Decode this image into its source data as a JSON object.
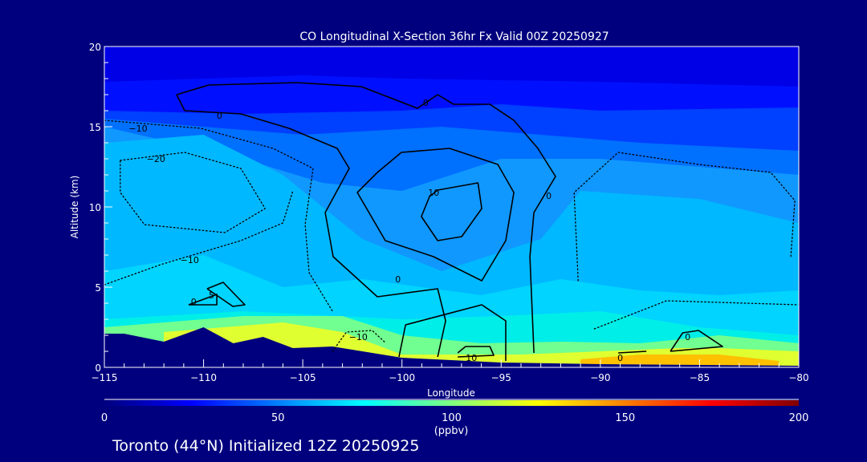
{
  "chart_data": {
    "type": "heatmap",
    "title": "CO Longitudinal X-Section 36hr  Fx Valid 00Z 20250927",
    "xlabel": "Longitude",
    "ylabel": "Altitude (km)",
    "xlim": [
      -115,
      -80
    ],
    "ylim": [
      0,
      20
    ],
    "xticks": [
      -115,
      -110,
      -105,
      -100,
      -95,
      -90,
      -85,
      -80
    ],
    "xtick_labels": [
      "−115",
      "−110",
      "−105",
      "−100",
      "−95",
      "−90",
      "−85",
      "−80"
    ],
    "yticks": [
      0,
      5,
      10,
      15,
      20
    ],
    "ytick_labels": [
      "0",
      "5",
      "10",
      "15",
      "20"
    ],
    "colorbar": {
      "min": 0,
      "max": 200,
      "ticks": [
        0,
        50,
        100,
        150,
        200
      ],
      "tick_labels": [
        "0",
        "50",
        "100",
        "150",
        "200"
      ],
      "units": "(ppbv)",
      "colors": [
        "#00007f",
        "#0000ff",
        "#0080ff",
        "#00ffff",
        "#80ff80",
        "#ffff00",
        "#ff8000",
        "#ff0000",
        "#800000"
      ]
    },
    "field_bands": [
      {
        "color": "#0000e6",
        "boundary": [
          [
            -115,
            20
          ],
          [
            -80,
            20
          ]
        ]
      },
      {
        "color": "#0010ff",
        "boundary": [
          [
            -115,
            17.8
          ],
          [
            -105,
            18.2
          ],
          [
            -100,
            18
          ],
          [
            -90,
            17.8
          ],
          [
            -80,
            17.5
          ]
        ]
      },
      {
        "color": "#0040ff",
        "boundary": [
          [
            -115,
            16
          ],
          [
            -108,
            15.8
          ],
          [
            -100,
            16
          ],
          [
            -95,
            16.4
          ],
          [
            -90,
            16
          ],
          [
            -80,
            16.2
          ]
        ]
      },
      {
        "color": "#0070ff",
        "boundary": [
          [
            -115,
            15.5
          ],
          [
            -105,
            14.5
          ],
          [
            -98,
            15
          ],
          [
            -93,
            14.5
          ],
          [
            -88,
            14
          ],
          [
            -80,
            13.5
          ]
        ]
      },
      {
        "color": "#1098ff",
        "boundary": [
          [
            -115,
            15
          ],
          [
            -108,
            13
          ],
          [
            -104,
            11.5
          ],
          [
            -100,
            11
          ],
          [
            -95,
            13
          ],
          [
            -90,
            13
          ],
          [
            -80,
            12
          ]
        ]
      },
      {
        "color": "#00b8ff",
        "boundary": [
          [
            -115,
            14
          ],
          [
            -110,
            14.5
          ],
          [
            -106,
            12
          ],
          [
            -102,
            8
          ],
          [
            -98,
            6
          ],
          [
            -93,
            8
          ],
          [
            -91,
            11
          ],
          [
            -85,
            10.5
          ],
          [
            -80,
            9
          ]
        ]
      },
      {
        "color": "#00d4ff",
        "boundary": [
          [
            -115,
            6
          ],
          [
            -110,
            7
          ],
          [
            -106,
            5
          ],
          [
            -102,
            5.5
          ],
          [
            -96,
            4.5
          ],
          [
            -92,
            5.5
          ],
          [
            -88,
            4.8
          ],
          [
            -84,
            4.5
          ],
          [
            -80,
            4.8
          ]
        ]
      },
      {
        "color": "#00eee8",
        "boundary": [
          [
            -115,
            3
          ],
          [
            -108,
            3.5
          ],
          [
            -100,
            3
          ],
          [
            -95,
            3.2
          ],
          [
            -90,
            3.5
          ],
          [
            -85,
            2.5
          ],
          [
            -80,
            2
          ]
        ]
      },
      {
        "color": "#70ff90",
        "boundary": [
          [
            -115,
            2.5
          ],
          [
            -108,
            3.2
          ],
          [
            -103,
            3.2
          ],
          [
            -100,
            2
          ],
          [
            -96,
            1.5
          ],
          [
            -92,
            1.6
          ],
          [
            -88,
            1.5
          ],
          [
            -84,
            2
          ],
          [
            -80,
            1.5
          ]
        ]
      },
      {
        "color": "#e0ff30",
        "boundary": [
          [
            -112,
            2.2
          ],
          [
            -106,
            2.8
          ],
          [
            -103,
            2.2
          ],
          [
            -100,
            0.8
          ],
          [
            -94,
            0.8
          ],
          [
            -90,
            1.0
          ],
          [
            -86,
            1.2
          ],
          [
            -84,
            1.2
          ],
          [
            -80,
            1.0
          ]
        ]
      },
      {
        "color": "#ffc000",
        "boundary": [
          [
            -91,
            0.5
          ],
          [
            -88,
            0.8
          ],
          [
            -84,
            0.8
          ],
          [
            -81,
            0.4
          ]
        ]
      }
    ],
    "terrain": [
      [
        -115,
        2.1
      ],
      [
        -114,
        2.1
      ],
      [
        -112,
        1.6
      ],
      [
        -110,
        2.5
      ],
      [
        -108.5,
        1.5
      ],
      [
        -107,
        1.9
      ],
      [
        -105.5,
        1.2
      ],
      [
        -103.5,
        1.3
      ],
      [
        -100,
        0.6
      ],
      [
        -95,
        0.3
      ],
      [
        -90,
        0.2
      ],
      [
        -80,
        0.1
      ]
    ],
    "contours": [
      {
        "level": 0,
        "dashed": false,
        "points": [
          [
            -111.36,
            17
          ],
          [
            -109.74,
            17.6
          ],
          [
            -105.29,
            17.75
          ],
          [
            -102.05,
            17.5
          ],
          [
            -99.22,
            16.15
          ],
          [
            -98.2,
            17
          ],
          [
            -97.4,
            16.4
          ],
          [
            -95.57,
            16.4
          ],
          [
            -94.36,
            15.4
          ],
          [
            -93.15,
            13.65
          ],
          [
            -92.26,
            11.9
          ],
          [
            -93.35,
            9.65
          ],
          [
            -93.55,
            6.9
          ],
          [
            -93.35,
            0.9
          ]
        ]
      },
      {
        "level": 0,
        "dashed": false,
        "points": [
          [
            -100.03,
            13.4
          ],
          [
            -97.6,
            13.65
          ],
          [
            -95.17,
            12.65
          ],
          [
            -94.36,
            10.9
          ],
          [
            -94.77,
            7.9
          ],
          [
            -95.98,
            5.4
          ],
          [
            -98.41,
            6.9
          ],
          [
            -100.84,
            7.9
          ],
          [
            -102.25,
            10.9
          ],
          [
            -101.24,
            12.15
          ],
          [
            -100.03,
            13.4
          ]
        ]
      },
      {
        "level": 0,
        "dashed": false,
        "points": [
          [
            -111.36,
            17
          ],
          [
            -110.95,
            16
          ],
          [
            -108.12,
            15.8
          ],
          [
            -105.69,
            14.9
          ],
          [
            -103.26,
            13.65
          ],
          [
            -102.66,
            12.4
          ],
          [
            -103.87,
            9.65
          ],
          [
            -103.47,
            6.9
          ],
          [
            -101.24,
            4.4
          ],
          [
            -98.2,
            4.9
          ],
          [
            -97.8,
            2.9
          ],
          [
            -98.2,
            0.65
          ]
        ]
      },
      {
        "level": 0,
        "dashed": false,
        "points": [
          [
            -100.15,
            0.65
          ],
          [
            -99.82,
            2.65
          ],
          [
            -95.98,
            3.9
          ],
          [
            -94.77,
            2.9
          ],
          [
            -94.77,
            0.4
          ]
        ]
      },
      {
        "level": 10,
        "dashed": false,
        "points": [
          [
            -98.2,
            11.05
          ],
          [
            -96.17,
            11.5
          ],
          [
            -95.98,
            9.9
          ],
          [
            -96.99,
            8.15
          ],
          [
            -98.2,
            7.9
          ],
          [
            -99.02,
            9.4
          ],
          [
            -98.61,
            10.65
          ],
          [
            -98.2,
            11.05
          ]
        ]
      },
      {
        "level": 10,
        "dashed": false,
        "points": [
          [
            -97.19,
            0.9
          ],
          [
            -96.79,
            1.3
          ],
          [
            -95.57,
            1.3
          ],
          [
            -95.37,
            0.75
          ],
          [
            -97.19,
            0.65
          ]
        ]
      },
      {
        "level": 0,
        "dashed": false,
        "points": [
          [
            -86.47,
            1
          ],
          [
            -85.85,
            2.15
          ],
          [
            -85.05,
            2.3
          ],
          [
            -83.84,
            1.3
          ],
          [
            -86.47,
            1
          ]
        ]
      },
      {
        "level": 0,
        "dashed": false,
        "points": [
          [
            -109.82,
            4.9
          ],
          [
            -109.01,
            5.3
          ],
          [
            -107.92,
            3.9
          ],
          [
            -108.52,
            3.8
          ],
          [
            -109.82,
            4.9
          ]
        ]
      },
      {
        "level": 0,
        "dashed": false,
        "points": [
          [
            -110.75,
            3.9
          ],
          [
            -109.33,
            4.55
          ],
          [
            -109.33,
            3.9
          ],
          [
            -110.75,
            3.9
          ]
        ]
      },
      {
        "level": 0,
        "dashed": false,
        "points": [
          [
            -89.1,
            0.9
          ],
          [
            -87.68,
            1
          ]
        ]
      },
      {
        "level": -10,
        "dashed": true,
        "points": [
          [
            -115,
            15.4
          ],
          [
            -110.14,
            14.9
          ],
          [
            -106.5,
            13.65
          ],
          [
            -104.48,
            12.4
          ],
          [
            -104.88,
            8.9
          ],
          [
            -104.68,
            5.9
          ],
          [
            -103.5,
            3.5
          ]
        ]
      },
      {
        "level": -10,
        "dashed": true,
        "points": [
          [
            -115,
            5.15
          ],
          [
            -112.17,
            6.4
          ],
          [
            -108.12,
            7.9
          ],
          [
            -106,
            9
          ],
          [
            -105.5,
            11
          ]
        ]
      },
      {
        "level": -20,
        "dashed": true,
        "points": [
          [
            -114.2,
            12.9
          ],
          [
            -110.95,
            13.4
          ],
          [
            -108.12,
            12.4
          ],
          [
            -106.9,
            9.9
          ],
          [
            -108.93,
            8.4
          ],
          [
            -112.98,
            8.9
          ],
          [
            -114.2,
            10.9
          ],
          [
            -114.2,
            12.9
          ]
        ]
      },
      {
        "level": -10,
        "dashed": true,
        "points": [
          [
            -103.5,
            1.0
          ],
          [
            -102.8,
            2.2
          ],
          [
            -101.5,
            2.3
          ],
          [
            -100.8,
            1.5
          ]
        ]
      },
      {
        "level": 0,
        "dashed": true,
        "points": [
          [
            -91.12,
            5.4
          ],
          [
            -91.32,
            10.9
          ],
          [
            -89.1,
            13.4
          ],
          [
            -85.05,
            12.65
          ],
          [
            -81.41,
            12.15
          ],
          [
            -80.2,
            10.4
          ],
          [
            -80.4,
            6.9
          ]
        ]
      },
      {
        "level": 0,
        "dashed": true,
        "points": [
          [
            -90.3,
            2.4
          ],
          [
            -86.67,
            4.15
          ],
          [
            -80,
            3.9
          ]
        ]
      }
    ],
    "contour_labels": [
      {
        "text": "0",
        "lon": -109.2,
        "alt": 15.7
      },
      {
        "text": "0",
        "lon": -98.8,
        "alt": 16.5
      },
      {
        "text": "−10",
        "lon": -113.3,
        "alt": 14.9
      },
      {
        "text": "−20",
        "lon": -112.4,
        "alt": 13.0
      },
      {
        "text": "10",
        "lon": -98.4,
        "alt": 10.9
      },
      {
        "text": "0",
        "lon": -92.6,
        "alt": 10.7
      },
      {
        "text": "−10",
        "lon": -110.7,
        "alt": 6.7
      },
      {
        "text": "0",
        "lon": -100.2,
        "alt": 5.5
      },
      {
        "text": "0",
        "lon": -110.5,
        "alt": 4.1
      },
      {
        "text": "5",
        "lon": -109.6,
        "alt": 4.5
      },
      {
        "text": "−10",
        "lon": -102.2,
        "alt": 1.9
      },
      {
        "text": "10",
        "lon": -96.5,
        "alt": 0.6
      },
      {
        "text": "0",
        "lon": -89.0,
        "alt": 0.6
      },
      {
        "text": "0",
        "lon": -85.6,
        "alt": 1.9
      }
    ]
  },
  "footer": "Toronto (44°N) Initialized 12Z 20250925"
}
